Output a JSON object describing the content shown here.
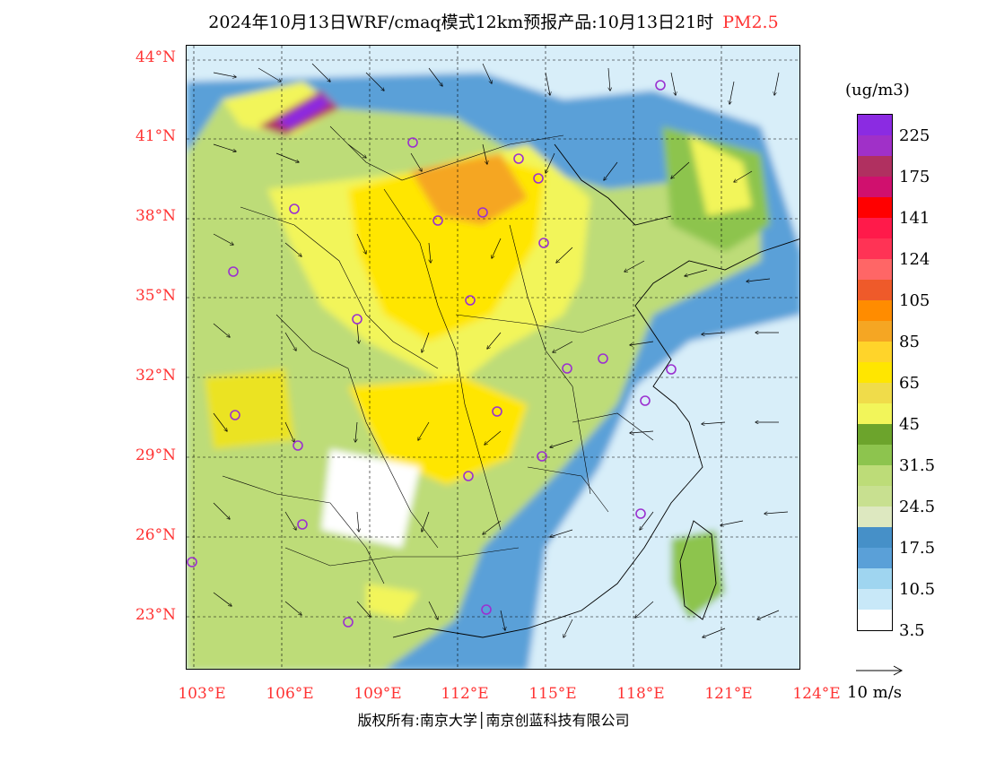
{
  "title": "2024年10月13日WRF/cmaq模式12km预报产品:10月13日21时",
  "variable": "PM2.5",
  "lat_labels": [
    "44°N",
    "41°N",
    "38°N",
    "35°N",
    "32°N",
    "29°N",
    "26°N",
    "23°N"
  ],
  "lon_labels": [
    "103°E",
    "106°E",
    "109°E",
    "112°E",
    "115°E",
    "118°E",
    "121°E",
    "124°E"
  ],
  "colorbar": {
    "units": "(ug/m3)",
    "labels": [
      "225",
      "175",
      "141",
      "124",
      "105",
      "85",
      "65",
      "45",
      "31.5",
      "24.5",
      "17.5",
      "10.5",
      "3.5"
    ],
    "colors": [
      "#8b2be2",
      "#a030c8",
      "#b03060",
      "#d0106e",
      "#ff0000",
      "#ff1a4a",
      "#ff3355",
      "#ff6666",
      "#ef5a2a",
      "#ff8c00",
      "#f5a623",
      "#ffd42a",
      "#ffe600",
      "#f0dc4a",
      "#f2f55a",
      "#6ca42c",
      "#8dc44e",
      "#bddc78",
      "#c8e090",
      "#dde8c0",
      "#4690c8",
      "#5aa0d8",
      "#9fd5f0",
      "#c8e8f8",
      "#ffffff"
    ]
  },
  "wind_scale_label": "10 m/s",
  "footer": "版权所有:南京大学│南京创蓝科技有限公司"
}
